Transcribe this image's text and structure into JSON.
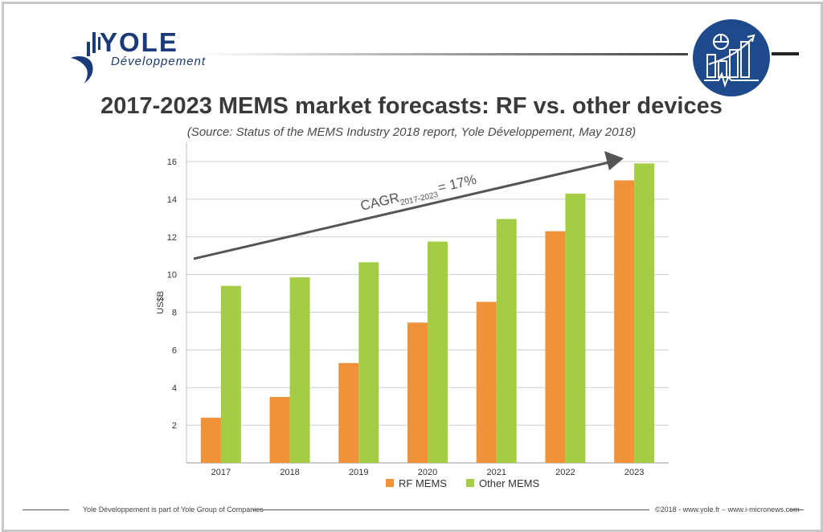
{
  "brand": {
    "name": "YOLE",
    "tagline": "Développement"
  },
  "header": {
    "title": "2017-2023 MEMS market forecasts: RF vs. other devices",
    "subtitle": "(Source: Status of the MEMS Industry 2018 report, Yole Développement, May 2018)"
  },
  "footer": {
    "left": "Yole Développement is part of Yole Group of Companies",
    "right": "©2018 - www.yole.fr – www.i-micronews.com"
  },
  "colors": {
    "rf": "#f0923a",
    "other": "#a5cc45",
    "brand": "#1a3a7a",
    "badge": "#1e4a8c"
  },
  "chart_data": {
    "type": "bar",
    "title": "2017-2023 MEMS market forecasts: RF vs. other devices",
    "xlabel": "",
    "ylabel": "US$B",
    "ylim": [
      0,
      16
    ],
    "yticks": [
      2,
      4,
      6,
      8,
      10,
      12,
      14,
      16
    ],
    "categories": [
      "2017",
      "2018",
      "2019",
      "2020",
      "2021",
      "2022",
      "2023"
    ],
    "series": [
      {
        "name": "RF MEMS",
        "values": [
          2.4,
          3.5,
          5.3,
          7.45,
          8.55,
          12.3,
          15.0
        ]
      },
      {
        "name": "Other MEMS",
        "values": [
          9.4,
          9.85,
          10.65,
          11.75,
          12.95,
          14.3,
          15.9
        ]
      }
    ],
    "grid": true,
    "legend": "bottom-center",
    "annotation": {
      "label": "CAGR",
      "subscript": "2017-2023",
      "suffix": "= 17%"
    }
  }
}
